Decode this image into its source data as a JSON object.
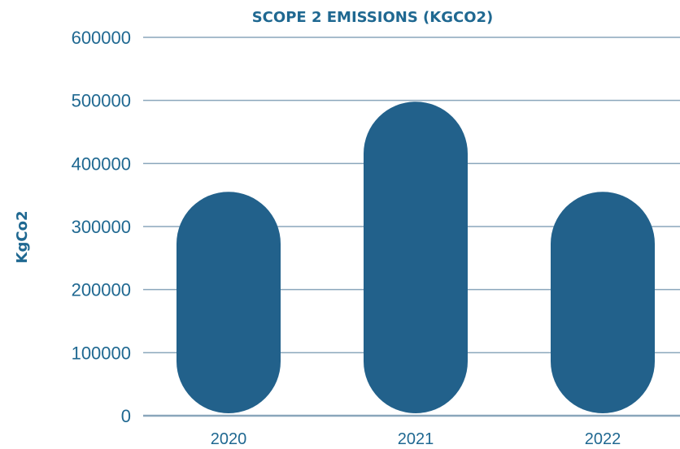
{
  "chart_data": {
    "type": "bar",
    "title": "SCOPE 2 EMISSIONS (KGCO2)",
    "xlabel": "",
    "ylabel": "KgCo2",
    "categories": [
      "2020",
      "2021",
      "2022"
    ],
    "values": [
      355000,
      498000,
      355000
    ],
    "ylim": [
      0,
      600000
    ],
    "yticks": [
      "0",
      "100000",
      "200000",
      "300000",
      "400000",
      "500000",
      "600000"
    ],
    "grid": true,
    "legend": "none",
    "bar_style": "rounded-pill",
    "colors": {
      "bar": "#22618b",
      "text": "#1f6891",
      "grid": "#8aa6bb"
    }
  }
}
